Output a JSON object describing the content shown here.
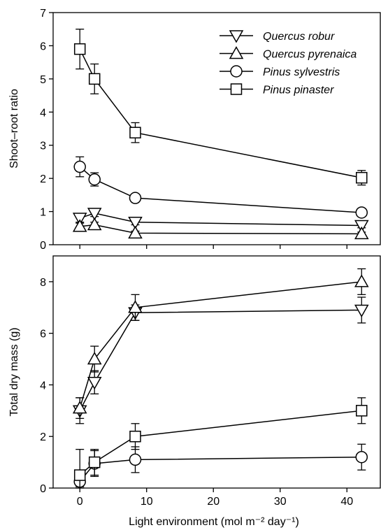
{
  "chart_data": [
    {
      "type": "line",
      "panel": "top",
      "xlabel": "",
      "ylabel": "Shoot–root ratio",
      "xlim": [
        -4,
        45
      ],
      "ylim": [
        0,
        7
      ],
      "yticks": [
        0,
        1,
        2,
        3,
        4,
        5,
        6,
        7
      ],
      "xticks": [
        0,
        10,
        20,
        30,
        40
      ],
      "legend_position": "top-right",
      "series": [
        {
          "name": "Quercus robur",
          "marker": "triangle-down",
          "x": [
            0,
            2.2,
            8.3,
            42.2
          ],
          "y": [
            0.8,
            0.95,
            0.68,
            0.58
          ],
          "err": [
            0.12,
            0.1,
            0.08,
            0.07
          ]
        },
        {
          "name": "Quercus pyrenaica",
          "marker": "triangle-up",
          "x": [
            0,
            2.2,
            8.3,
            42.2
          ],
          "y": [
            0.55,
            0.6,
            0.35,
            0.33
          ],
          "err": [
            0.1,
            0.08,
            0.06,
            0.05
          ]
        },
        {
          "name": "Pinus sylvestris",
          "marker": "circle",
          "x": [
            0,
            2.2,
            8.3,
            42.2
          ],
          "y": [
            2.35,
            1.97,
            1.41,
            0.97
          ],
          "err": [
            0.3,
            0.2,
            0.1,
            0.08
          ]
        },
        {
          "name": "Pinus pinaster",
          "marker": "square",
          "x": [
            0,
            2.2,
            8.3,
            42.2
          ],
          "y": [
            5.9,
            5.0,
            3.38,
            2.02
          ],
          "err": [
            0.6,
            0.45,
            0.3,
            0.22
          ]
        }
      ]
    },
    {
      "type": "line",
      "panel": "bottom",
      "xlabel": "Light environment (mol m⁻² day⁻¹)",
      "ylabel": "Total dry mass (g)",
      "xlim": [
        -4,
        45
      ],
      "ylim": [
        0,
        9
      ],
      "yticks": [
        0,
        2,
        4,
        6,
        8
      ],
      "xticks": [
        0,
        10,
        20,
        30,
        40
      ],
      "series": [
        {
          "name": "Quercus robur",
          "marker": "triangle-down",
          "x": [
            0,
            2.2,
            8.3,
            42.2
          ],
          "y": [
            3.0,
            4.1,
            6.8,
            6.9
          ],
          "err": [
            0.5,
            0.45,
            0.3,
            0.5
          ]
        },
        {
          "name": "Quercus pyrenaica",
          "marker": "triangle-up",
          "x": [
            0,
            2.2,
            8.3,
            42.2
          ],
          "y": [
            3.1,
            5.0,
            7.0,
            8.0
          ],
          "err": [
            0.4,
            0.5,
            0.5,
            0.5
          ]
        },
        {
          "name": "Pinus sylvestris",
          "marker": "circle",
          "x": [
            0,
            2.2,
            8.3,
            42.2
          ],
          "y": [
            0.25,
            0.95,
            1.1,
            1.2
          ],
          "err": [
            0.2,
            0.5,
            0.5,
            0.5
          ]
        },
        {
          "name": "Pinus pinaster",
          "marker": "square",
          "x": [
            0,
            2.2,
            8.3,
            42.2
          ],
          "y": [
            0.5,
            1.0,
            2.0,
            3.0
          ],
          "err": [
            1.0,
            0.5,
            0.5,
            0.5
          ]
        }
      ]
    }
  ]
}
